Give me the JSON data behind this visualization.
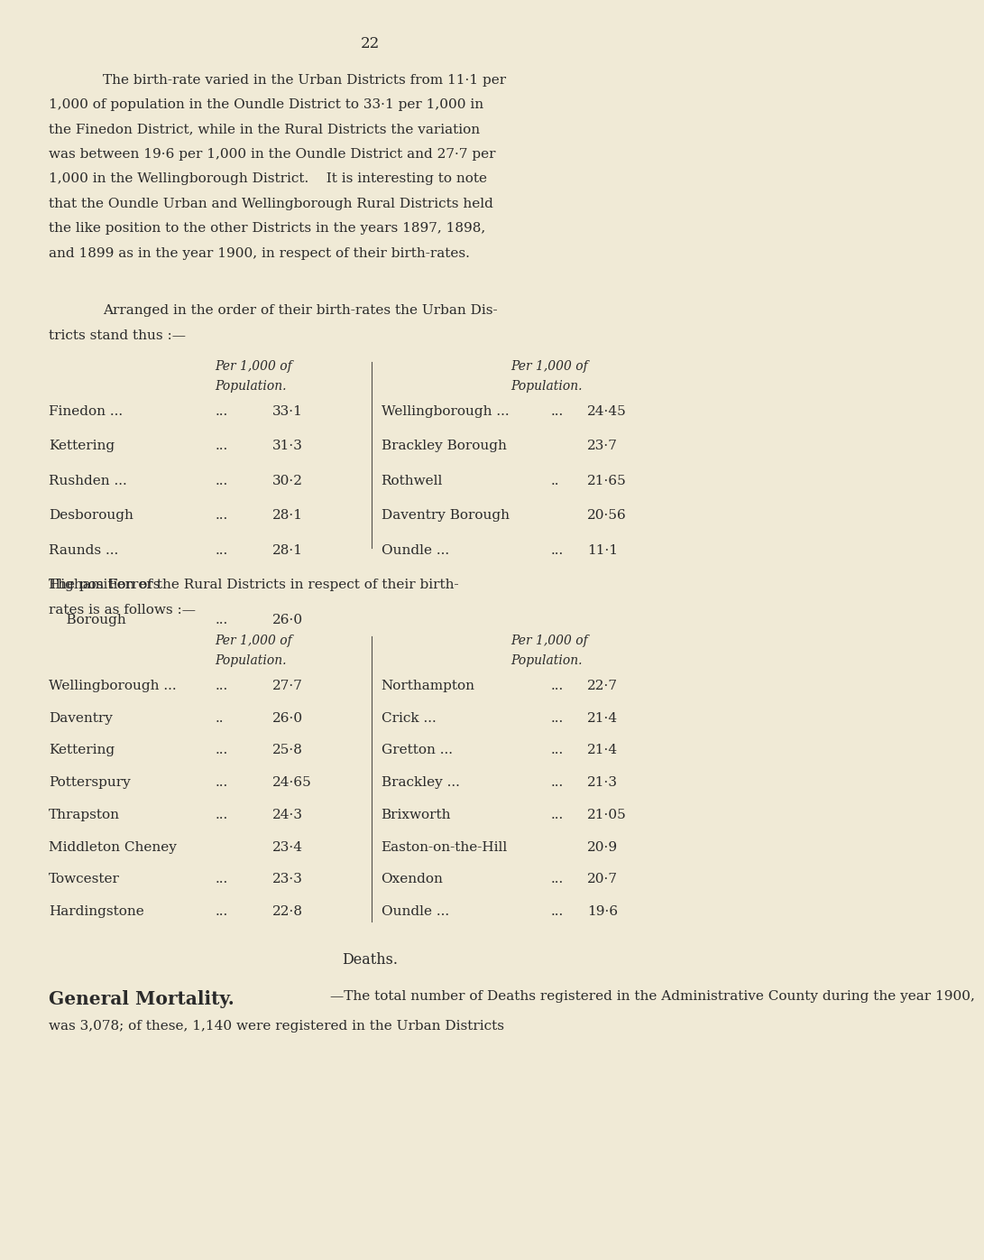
{
  "bg_color": "#f0ead6",
  "text_color": "#2a2a2a",
  "page_number": "22",
  "paragraph1_lines": [
    "The birth-rate varied in the Urban Districts from 11·1 per",
    "1,000 of population in the Oundle District to 33·1 per 1,000 in",
    "the Finedon District, while in the Rural Districts the variation",
    "was between 19·6 per 1,000 in the Oundle District and 27·7 per",
    "1,000 in the Wellingborough District.    It is interesting to note",
    "that the Oundle Urban and Wellingborough Rural Districts held",
    "the like position to the other Districts in the years 1897, 1898,",
    "and 1899 as in the year 1900, in respect of their birth-rates."
  ],
  "intro2_lines": [
    "Arranged in the order of their birth-rates the Urban Dis-",
    "tricts stand thus :—"
  ],
  "urban_left_data": [
    [
      "Finedon ...",
      "...",
      "33·1",
      false
    ],
    [
      "Kettering",
      "...",
      "31·3",
      false
    ],
    [
      "Rushden ...",
      "...",
      "30·2",
      false
    ],
    [
      "Desborough",
      "...",
      "28·1",
      false
    ],
    [
      "Raunds ...",
      "...",
      "28·1",
      false
    ],
    [
      "Higham Ferrers",
      "",
      "",
      true
    ],
    [
      "    Borough",
      "...",
      "26·0",
      false
    ]
  ],
  "urban_right_data": [
    [
      "Wellingborough ...",
      "...",
      "24·45"
    ],
    [
      "Brackley Borough",
      "",
      "23·7"
    ],
    [
      "Rothwell",
      "..",
      "21·65"
    ],
    [
      "Daventry Borough",
      "",
      "20·56"
    ],
    [
      "Oundle ...",
      "...",
      "11·1"
    ]
  ],
  "intro3_lines": [
    "The position of the Rural Districts in respect of their birth-",
    "rates is as follows :—"
  ],
  "rural_left_data": [
    [
      "Wellingborough ...",
      "...",
      "27·7"
    ],
    [
      "Daventry",
      "..",
      "26·0"
    ],
    [
      "Kettering",
      "...",
      "25·8"
    ],
    [
      "Potterspury",
      "...",
      "24·65"
    ],
    [
      "Thrapston",
      "...",
      "24·3"
    ],
    [
      "Middleton Cheney",
      "",
      "23·4"
    ],
    [
      "Towcester",
      "...",
      "23·3"
    ],
    [
      "Hardingstone",
      "...",
      "22·8"
    ]
  ],
  "rural_right_data": [
    [
      "Northampton",
      "...",
      "22·7"
    ],
    [
      "Crick ...",
      "...",
      "21·4"
    ],
    [
      "Gretton ...",
      "...",
      "21·4"
    ],
    [
      "Brackley ...",
      "...",
      "21·3"
    ],
    [
      "Brixworth",
      "...",
      "21·05"
    ],
    [
      "Easton-on-the-Hill",
      "",
      "20·9"
    ],
    [
      "Oxendon",
      "...",
      "20·7"
    ],
    [
      "Oundle ...",
      "...",
      "19·6"
    ]
  ],
  "deaths_header": "Deaths.",
  "deaths_bold": "General Mortality.",
  "deaths_text_line1": "—The total number of Deaths registered in the Administrative County during the year 1900,",
  "deaths_text_line2": "was 3,078; of these, 1,140 were registered in the Urban Districts"
}
